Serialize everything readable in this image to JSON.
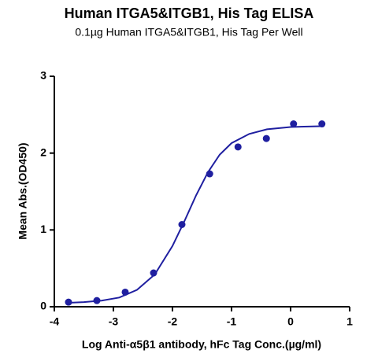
{
  "chart_data": {
    "type": "scatter",
    "title": "Human ITGA5&ITGB1, His Tag ELISA",
    "subtitle": "0.1µg Human ITGA5&ITGB1, His Tag Per Well",
    "x_label": "Log Anti-α5β1 antibody, hFc Tag Conc.(µg/ml)",
    "y_label": "Mean Abs.(OD450)",
    "color": "#1f1fa0",
    "points": {
      "x": [
        -3.76,
        -3.28,
        -2.8,
        -2.32,
        -1.84,
        -1.37,
        -0.89,
        -0.41,
        0.05,
        0.53
      ],
      "values": [
        0.06,
        0.08,
        0.19,
        0.44,
        1.07,
        1.73,
        2.08,
        2.19,
        2.38,
        2.38
      ]
    },
    "curve": {
      "x": [
        -3.8,
        -3.5,
        -3.2,
        -2.9,
        -2.6,
        -2.3,
        -2.0,
        -1.8,
        -1.6,
        -1.4,
        -1.2,
        -1.0,
        -0.7,
        -0.4,
        0,
        0.5
      ],
      "values": [
        0.05,
        0.06,
        0.08,
        0.12,
        0.22,
        0.42,
        0.79,
        1.11,
        1.45,
        1.75,
        1.98,
        2.13,
        2.25,
        2.31,
        2.34,
        2.35
      ]
    },
    "xlim": [
      -4,
      1
    ],
    "xticks": [
      -4,
      -3,
      -2,
      -1,
      0,
      1
    ],
    "ylim": [
      0,
      3
    ],
    "yticks": [
      0,
      1,
      2,
      3
    ]
  }
}
